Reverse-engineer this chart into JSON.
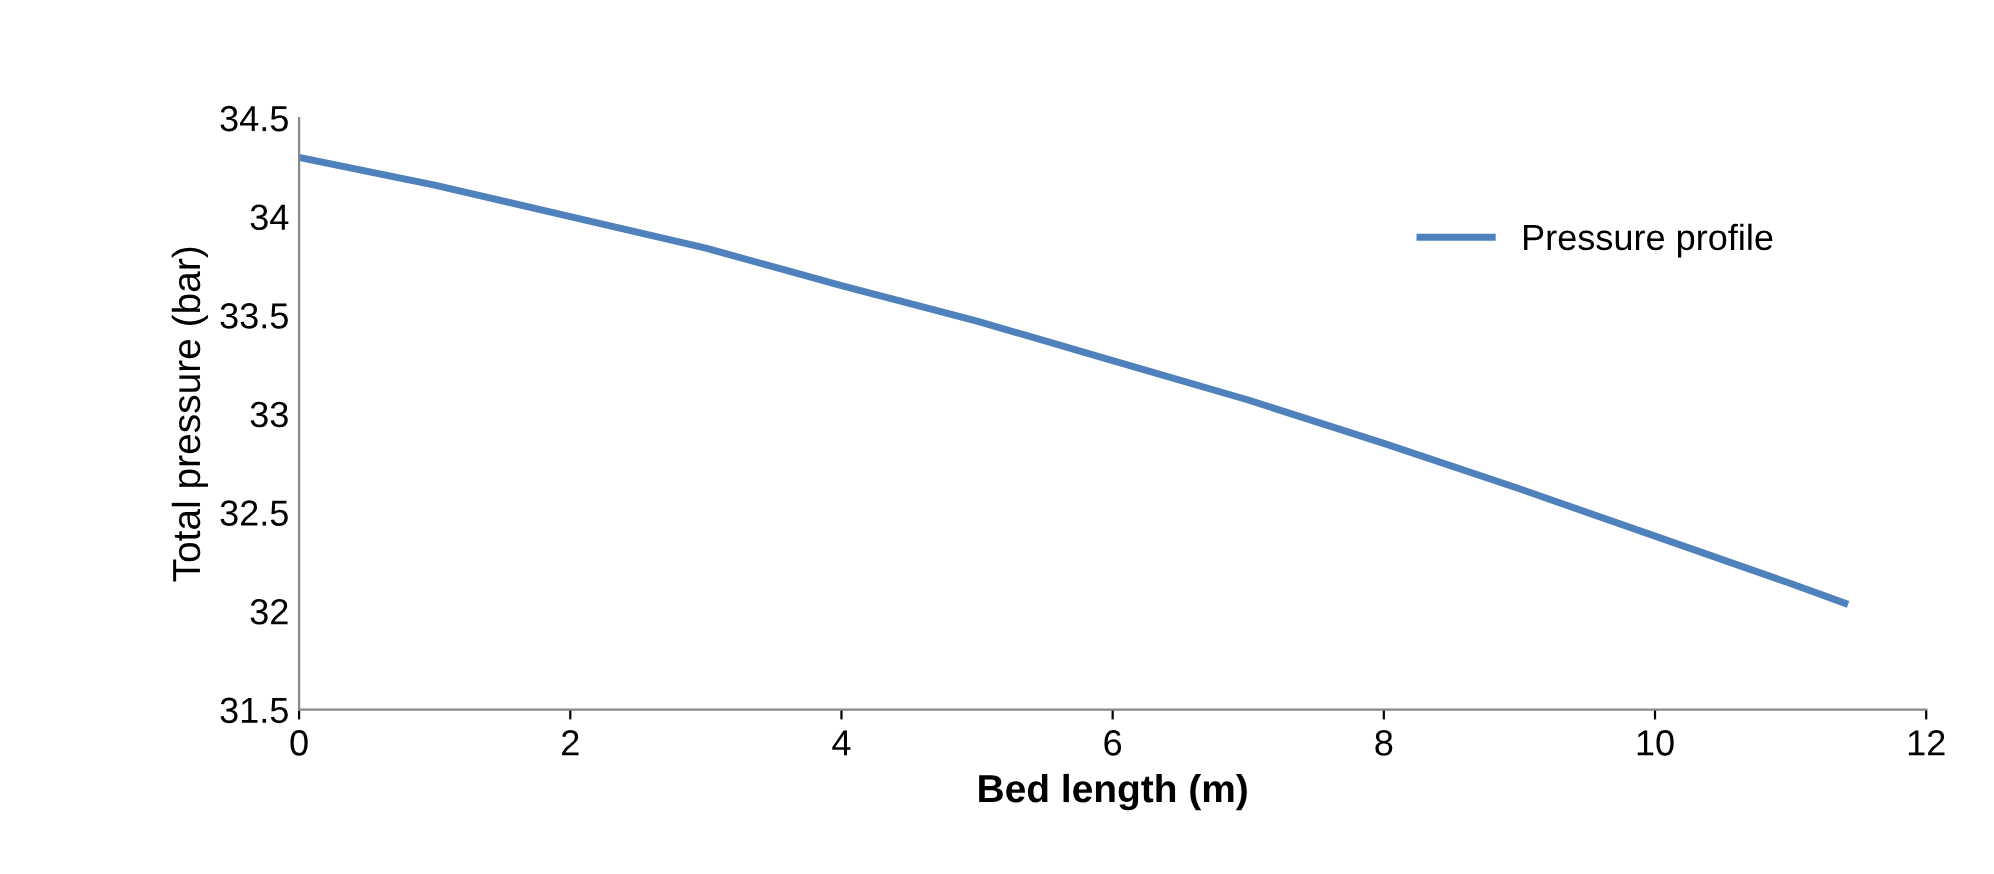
{
  "chart_data": {
    "type": "line",
    "xlabel": "Bed length (m)",
    "ylabel": "Total pressure (bar)",
    "x": [
      0,
      1,
      2,
      3,
      4,
      5,
      6,
      7,
      8,
      9,
      10,
      11,
      11.4
    ],
    "series": [
      {
        "name": "Pressure profile",
        "color": "#4f81bd",
        "values": [
          34.3,
          34.16,
          34.0,
          33.84,
          33.65,
          33.47,
          33.27,
          33.07,
          32.85,
          32.62,
          32.38,
          32.14,
          32.04
        ]
      }
    ],
    "xlim": [
      0,
      12
    ],
    "xticks": [
      0,
      2,
      4,
      6,
      8,
      10,
      12
    ],
    "ylim": [
      31.5,
      34.5
    ],
    "yticks": [
      31.5,
      32,
      32.5,
      33,
      33.5,
      34,
      34.5
    ],
    "grid": false,
    "legend": "top right",
    "marker": "none",
    "line_style": "solid"
  }
}
